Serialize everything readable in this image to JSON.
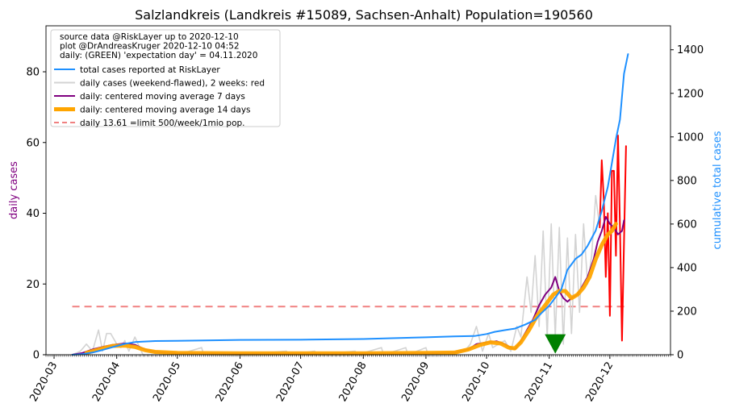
{
  "chart_data": {
    "type": "line",
    "title": "Salzlandkreis (Landkreis #15089, Sachsen-Anhalt) Population=190560",
    "ylabel_left": "daily cases",
    "ylabel_right": "cumulative total cases",
    "ylim_left": [
      0,
      93
    ],
    "ylim_right": [
      0,
      1510
    ],
    "yticks_left": [
      0,
      20,
      40,
      60,
      80
    ],
    "yticks_right": [
      0,
      200,
      400,
      600,
      800,
      1000,
      1200,
      1400
    ],
    "xlim": [
      "2020-02-26",
      "2020-12-31"
    ],
    "xticks": [
      "2020-03",
      "2020-04",
      "2020-05",
      "2020-06",
      "2020-07",
      "2020-08",
      "2020-09",
      "2020-10",
      "2020-11",
      "2020-12"
    ],
    "legend_position": "top-left",
    "legend_notes": [
      "source data @RiskLayer up to 2020-12-10",
      "plot @DrAndreasKruger 2020-12-10 04:52",
      "daily: (GREEN) 'expectation day' = 04.11.2020"
    ],
    "legend_entries": [
      {
        "label": "total cases reported at RiskLayer",
        "color": "#1e90ff",
        "style": "line"
      },
      {
        "label": "daily cases (weekend-flawed), 2 weeks: red",
        "color": "#d3d3d3",
        "style": "line"
      },
      {
        "label": "daily: centered moving average 7 days",
        "color": "#800080",
        "style": "line"
      },
      {
        "label": "daily: centered moving average 14 days",
        "color": "#ffa500",
        "style": "thick"
      },
      {
        "label": "daily 13.61 =limit 500/week/1mio pop.",
        "color": "#f08080",
        "style": "dashed"
      }
    ],
    "limit_line": {
      "value": 13.61,
      "x_start": "2020-03-10",
      "x_end": "2020-12-10"
    },
    "expectation_marker": {
      "x": "2020-11-04",
      "y": 3.5,
      "color": "#008000"
    },
    "colors": {
      "total": "#1e90ff",
      "daily": "#d3d3d3",
      "recent": "#ff0000",
      "ma7": "#800080",
      "ma14": "#ffa500",
      "limit": "#f08080",
      "marker": "#008000",
      "left_label": "#800080",
      "right_label": "#1e90ff"
    },
    "series": [
      {
        "name": "total cases reported at RiskLayer",
        "axis": "right",
        "points": [
          [
            "2020-03-10",
            0
          ],
          [
            "2020-03-15",
            3
          ],
          [
            "2020-03-20",
            10
          ],
          [
            "2020-03-25",
            22
          ],
          [
            "2020-03-30",
            35
          ],
          [
            "2020-04-05",
            50
          ],
          [
            "2020-04-10",
            58
          ],
          [
            "2020-04-20",
            63
          ],
          [
            "2020-05-01",
            64
          ],
          [
            "2020-05-15",
            66
          ],
          [
            "2020-06-01",
            68
          ],
          [
            "2020-07-01",
            69
          ],
          [
            "2020-08-01",
            72
          ],
          [
            "2020-08-15",
            76
          ],
          [
            "2020-09-01",
            80
          ],
          [
            "2020-09-15",
            84
          ],
          [
            "2020-09-25",
            86
          ],
          [
            "2020-10-01",
            95
          ],
          [
            "2020-10-05",
            105
          ],
          [
            "2020-10-10",
            113
          ],
          [
            "2020-10-15",
            120
          ],
          [
            "2020-10-20",
            138
          ],
          [
            "2020-10-25",
            160
          ],
          [
            "2020-10-28",
            190
          ],
          [
            "2020-11-01",
            225
          ],
          [
            "2020-11-04",
            262
          ],
          [
            "2020-11-07",
            300
          ],
          [
            "2020-11-10",
            390
          ],
          [
            "2020-11-14",
            440
          ],
          [
            "2020-11-17",
            460
          ],
          [
            "2020-11-20",
            500
          ],
          [
            "2020-11-24",
            570
          ],
          [
            "2020-11-27",
            660
          ],
          [
            "2020-11-30",
            770
          ],
          [
            "2020-12-02",
            880
          ],
          [
            "2020-12-04",
            990
          ],
          [
            "2020-12-06",
            1080
          ],
          [
            "2020-12-08",
            1290
          ],
          [
            "2020-12-10",
            1380
          ]
        ]
      },
      {
        "name": "daily cases (weekend-flawed), 2 weeks: red",
        "axis": "left",
        "points": [
          [
            "2020-03-10",
            0
          ],
          [
            "2020-03-14",
            1
          ],
          [
            "2020-03-17",
            3
          ],
          [
            "2020-03-20",
            1
          ],
          [
            "2020-03-23",
            7
          ],
          [
            "2020-03-25",
            1
          ],
          [
            "2020-03-27",
            6
          ],
          [
            "2020-03-29",
            6
          ],
          [
            "2020-04-01",
            3
          ],
          [
            "2020-04-03",
            2
          ],
          [
            "2020-04-05",
            4
          ],
          [
            "2020-04-07",
            1
          ],
          [
            "2020-04-10",
            5
          ],
          [
            "2020-04-14",
            0
          ],
          [
            "2020-05-01",
            0
          ],
          [
            "2020-05-13",
            2
          ],
          [
            "2020-05-14",
            0
          ],
          [
            "2020-06-01",
            0
          ],
          [
            "2020-06-24",
            1
          ],
          [
            "2020-06-25",
            0
          ],
          [
            "2020-07-08",
            1
          ],
          [
            "2020-07-09",
            0
          ],
          [
            "2020-07-28",
            1
          ],
          [
            "2020-07-29",
            0
          ],
          [
            "2020-08-10",
            2
          ],
          [
            "2020-08-11",
            0
          ],
          [
            "2020-08-22",
            2
          ],
          [
            "2020-08-23",
            0
          ],
          [
            "2020-09-01",
            2
          ],
          [
            "2020-09-02",
            0
          ],
          [
            "2020-09-20",
            1
          ],
          [
            "2020-09-23",
            3
          ],
          [
            "2020-09-26",
            8
          ],
          [
            "2020-09-29",
            1
          ],
          [
            "2020-10-02",
            6
          ],
          [
            "2020-10-04",
            2
          ],
          [
            "2020-10-07",
            3
          ],
          [
            "2020-10-10",
            4
          ],
          [
            "2020-10-13",
            1
          ],
          [
            "2020-10-16",
            8
          ],
          [
            "2020-10-18",
            5
          ],
          [
            "2020-10-21",
            22
          ],
          [
            "2020-10-23",
            12
          ],
          [
            "2020-10-25",
            28
          ],
          [
            "2020-10-27",
            8
          ],
          [
            "2020-10-29",
            35
          ],
          [
            "2020-10-31",
            5
          ],
          [
            "2020-11-02",
            37
          ],
          [
            "2020-11-04",
            5
          ],
          [
            "2020-11-06",
            36
          ],
          [
            "2020-11-08",
            3
          ],
          [
            "2020-11-10",
            33
          ],
          [
            "2020-11-12",
            6
          ],
          [
            "2020-11-14",
            34
          ],
          [
            "2020-11-16",
            12
          ],
          [
            "2020-11-18",
            37
          ],
          [
            "2020-11-20",
            20
          ],
          [
            "2020-11-22",
            28
          ],
          [
            "2020-11-24",
            45
          ],
          [
            "2020-11-26",
            36
          ]
        ]
      },
      {
        "name": "daily cases last 2 weeks",
        "axis": "left",
        "points": [
          [
            "2020-11-26",
            36
          ],
          [
            "2020-11-27",
            55
          ],
          [
            "2020-11-28",
            44
          ],
          [
            "2020-11-29",
            22
          ],
          [
            "2020-11-30",
            40
          ],
          [
            "2020-12-01",
            11
          ],
          [
            "2020-12-02",
            52
          ],
          [
            "2020-12-03",
            52
          ],
          [
            "2020-12-04",
            28
          ],
          [
            "2020-12-05",
            62
          ],
          [
            "2020-12-06",
            36
          ],
          [
            "2020-12-07",
            4
          ],
          [
            "2020-12-08",
            32
          ],
          [
            "2020-12-09",
            59
          ]
        ]
      },
      {
        "name": "daily: centered moving average 7 days",
        "axis": "left",
        "points": [
          [
            "2020-03-10",
            0
          ],
          [
            "2020-03-15",
            0.5
          ],
          [
            "2020-03-20",
            1.5
          ],
          [
            "2020-03-25",
            2.2
          ],
          [
            "2020-03-30",
            2.8
          ],
          [
            "2020-04-05",
            3.2
          ],
          [
            "2020-04-10",
            2.8
          ],
          [
            "2020-04-15",
            1.5
          ],
          [
            "2020-04-20",
            0.8
          ],
          [
            "2020-05-01",
            0.4
          ],
          [
            "2020-06-01",
            0.3
          ],
          [
            "2020-07-01",
            0.3
          ],
          [
            "2020-08-01",
            0.3
          ],
          [
            "2020-09-01",
            0.4
          ],
          [
            "2020-09-15",
            0.6
          ],
          [
            "2020-09-22",
            1.5
          ],
          [
            "2020-09-26",
            3.0
          ],
          [
            "2020-10-01",
            3.5
          ],
          [
            "2020-10-06",
            3.8
          ],
          [
            "2020-10-10",
            3.0
          ],
          [
            "2020-10-13",
            2.0
          ],
          [
            "2020-10-15",
            1.5
          ],
          [
            "2020-10-18",
            4
          ],
          [
            "2020-10-21",
            7
          ],
          [
            "2020-10-24",
            10
          ],
          [
            "2020-10-27",
            14
          ],
          [
            "2020-10-30",
            17
          ],
          [
            "2020-11-02",
            19
          ],
          [
            "2020-11-04",
            22
          ],
          [
            "2020-11-06",
            18
          ],
          [
            "2020-11-08",
            16
          ],
          [
            "2020-11-10",
            15
          ],
          [
            "2020-11-12",
            16
          ],
          [
            "2020-11-15",
            17
          ],
          [
            "2020-11-17",
            19
          ],
          [
            "2020-11-20",
            22
          ],
          [
            "2020-11-23",
            27
          ],
          [
            "2020-11-25",
            32
          ],
          [
            "2020-11-27",
            35
          ],
          [
            "2020-11-29",
            39
          ],
          [
            "2020-12-01",
            37
          ],
          [
            "2020-12-03",
            36
          ],
          [
            "2020-12-05",
            34
          ],
          [
            "2020-12-07",
            35
          ],
          [
            "2020-12-08",
            38
          ]
        ]
      },
      {
        "name": "daily: centered moving average 14 days",
        "axis": "left",
        "points": [
          [
            "2020-03-17",
            0.5
          ],
          [
            "2020-03-20",
            1.0
          ],
          [
            "2020-03-25",
            1.8
          ],
          [
            "2020-03-30",
            2.5
          ],
          [
            "2020-04-05",
            2.6
          ],
          [
            "2020-04-10",
            2.2
          ],
          [
            "2020-04-15",
            1.3
          ],
          [
            "2020-04-20",
            0.8
          ],
          [
            "2020-05-01",
            0.5
          ],
          [
            "2020-06-01",
            0.4
          ],
          [
            "2020-07-01",
            0.4
          ],
          [
            "2020-08-01",
            0.4
          ],
          [
            "2020-09-01",
            0.5
          ],
          [
            "2020-09-15",
            0.6
          ],
          [
            "2020-09-22",
            1.5
          ],
          [
            "2020-09-28",
            2.8
          ],
          [
            "2020-10-03",
            3.5
          ],
          [
            "2020-10-08",
            3.2
          ],
          [
            "2020-10-12",
            2.0
          ],
          [
            "2020-10-15",
            1.8
          ],
          [
            "2020-10-18",
            3.5
          ],
          [
            "2020-10-22",
            7
          ],
          [
            "2020-10-26",
            11
          ],
          [
            "2020-10-30",
            14
          ],
          [
            "2020-11-03",
            17
          ],
          [
            "2020-11-06",
            18
          ],
          [
            "2020-11-09",
            18
          ],
          [
            "2020-11-12",
            16
          ],
          [
            "2020-11-15",
            17
          ],
          [
            "2020-11-18",
            19
          ],
          [
            "2020-11-21",
            22
          ],
          [
            "2020-11-24",
            27
          ],
          [
            "2020-11-27",
            31
          ],
          [
            "2020-11-30",
            34
          ],
          [
            "2020-12-02",
            35
          ],
          [
            "2020-12-04",
            37
          ]
        ]
      }
    ]
  }
}
